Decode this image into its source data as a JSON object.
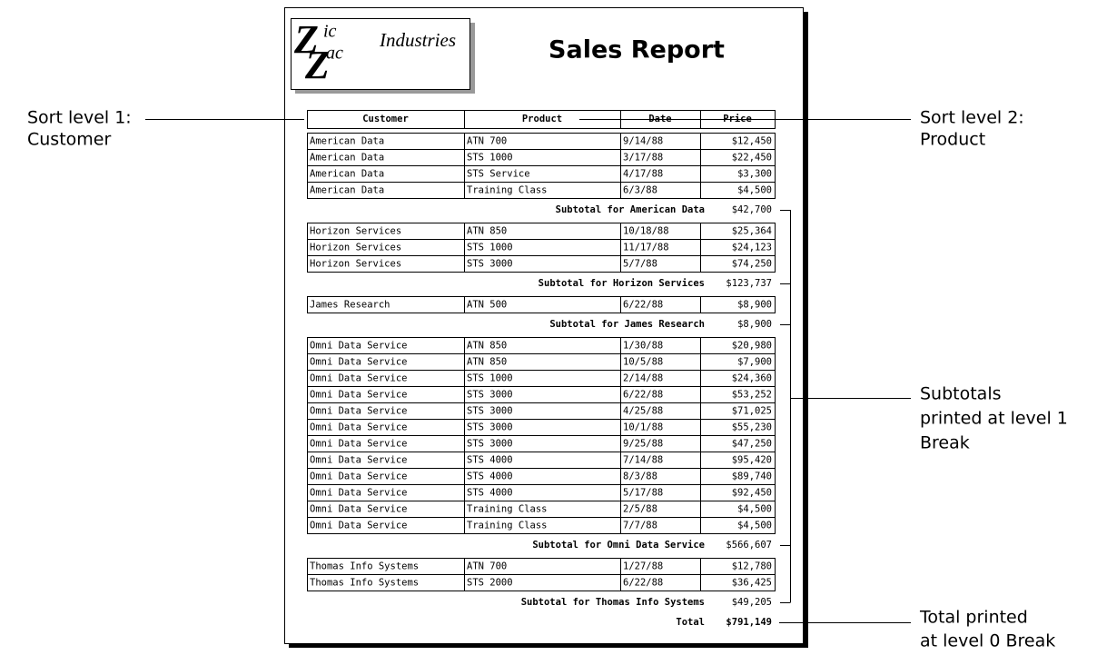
{
  "logo": {
    "parts": [
      "Z",
      "ic",
      "Z",
      "ac"
    ],
    "word": "Industries"
  },
  "title": "Sales Report",
  "table": {
    "headers": [
      "Customer",
      "Product",
      "Date",
      "Price"
    ],
    "groups": [
      {
        "rows": [
          [
            "American Data",
            "ATN 700",
            "9/14/88",
            "$12,450"
          ],
          [
            "American Data",
            "STS 1000",
            "3/17/88",
            "$22,450"
          ],
          [
            "American Data",
            "STS Service",
            "4/17/88",
            "$3,300"
          ],
          [
            "American Data",
            "Training Class",
            "6/3/88",
            "$4,500"
          ]
        ],
        "subtotal_label": "Subtotal for American Data",
        "subtotal": "$42,700"
      },
      {
        "rows": [
          [
            "Horizon Services",
            "ATN 850",
            "10/18/88",
            "$25,364"
          ],
          [
            "Horizon Services",
            "STS 1000",
            "11/17/88",
            "$24,123"
          ],
          [
            "Horizon Services",
            "STS 3000",
            "5/7/88",
            "$74,250"
          ]
        ],
        "subtotal_label": "Subtotal for Horizon Services",
        "subtotal": "$123,737"
      },
      {
        "rows": [
          [
            "James Research",
            "ATN 500",
            "6/22/88",
            "$8,900"
          ]
        ],
        "subtotal_label": "Subtotal for James Research",
        "subtotal": "$8,900"
      },
      {
        "rows": [
          [
            "Omni Data Service",
            "ATN 850",
            "1/30/88",
            "$20,980"
          ],
          [
            "Omni Data Service",
            "ATN 850",
            "10/5/88",
            "$7,900"
          ],
          [
            "Omni Data Service",
            "STS 1000",
            "2/14/88",
            "$24,360"
          ],
          [
            "Omni Data Service",
            "STS 3000",
            "6/22/88",
            "$53,252"
          ],
          [
            "Omni Data Service",
            "STS 3000",
            "4/25/88",
            "$71,025"
          ],
          [
            "Omni Data Service",
            "STS 3000",
            "10/1/88",
            "$55,230"
          ],
          [
            "Omni Data Service",
            "STS 3000",
            "9/25/88",
            "$47,250"
          ],
          [
            "Omni Data Service",
            "STS 4000",
            "7/14/88",
            "$95,420"
          ],
          [
            "Omni Data Service",
            "STS 4000",
            "8/3/88",
            "$89,740"
          ],
          [
            "Omni Data Service",
            "STS 4000",
            "5/17/88",
            "$92,450"
          ],
          [
            "Omni Data Service",
            "Training Class",
            "2/5/88",
            "$4,500"
          ],
          [
            "Omni Data Service",
            "Training Class",
            "7/7/88",
            "$4,500"
          ]
        ],
        "subtotal_label": "Subtotal for Omni Data Service",
        "subtotal": "$566,607"
      },
      {
        "rows": [
          [
            "Thomas Info Systems",
            "ATN 700",
            "1/27/88",
            "$12,780"
          ],
          [
            "Thomas Info Systems",
            "STS 2000",
            "6/22/88",
            "$36,425"
          ]
        ],
        "subtotal_label": "Subtotal for Thomas Info Systems",
        "subtotal": "$49,205"
      }
    ],
    "total_label": "Total",
    "total": "$791,149"
  },
  "callouts": {
    "sort_level_1": [
      "Sort level 1:",
      "Customer"
    ],
    "sort_level_2": [
      "Sort level 2:",
      "Product"
    ],
    "subtotals": [
      "Subtotals",
      "printed at level 1",
      "Break"
    ],
    "total": [
      "Total printed",
      "at level 0 Break"
    ]
  }
}
